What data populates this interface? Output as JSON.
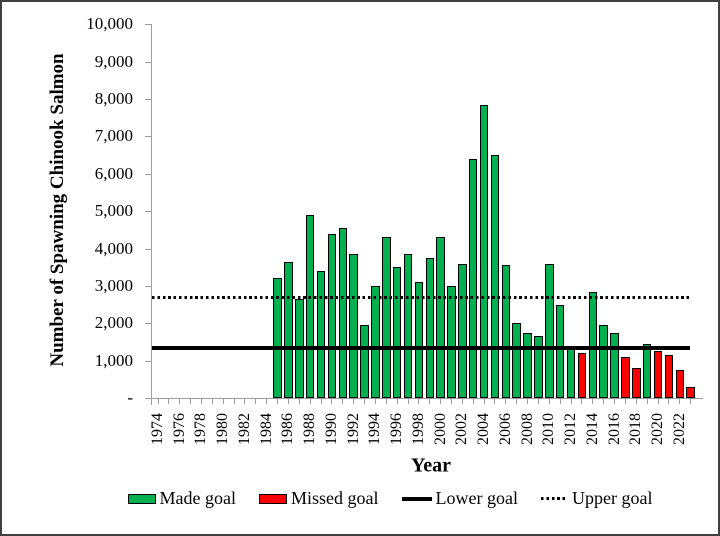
{
  "chart_data": {
    "type": "bar",
    "title": "",
    "ylabel": "Number of Spawning Chinook Salmon",
    "xlabel": "Year",
    "ylim": [
      0,
      10000
    ],
    "grid": false,
    "y_ticks": [
      {
        "value": 10000,
        "label": "10,000"
      },
      {
        "value": 9000,
        "label": "9,000"
      },
      {
        "value": 8000,
        "label": "8,000"
      },
      {
        "value": 7000,
        "label": "7,000"
      },
      {
        "value": 6000,
        "label": "6,000"
      },
      {
        "value": 5000,
        "label": "5,000"
      },
      {
        "value": 4000,
        "label": "4,000"
      },
      {
        "value": 3000,
        "label": "3,000"
      },
      {
        "value": 2000,
        "label": "2,000"
      },
      {
        "value": 1000,
        "label": "1,000"
      },
      {
        "value": 0,
        "label": "-"
      }
    ],
    "x_start_year": 1974,
    "x_end_year": 2023,
    "x_tick_labels": [
      "1974",
      "1976",
      "1978",
      "1980",
      "1982",
      "1984",
      "1986",
      "1988",
      "1990",
      "1992",
      "1994",
      "1996",
      "1998",
      "2000",
      "2002",
      "2004",
      "2006",
      "2008",
      "2010",
      "2012",
      "2014",
      "2016",
      "2018",
      "2020",
      "2022"
    ],
    "bars": [
      {
        "year": 1985,
        "value": 3200,
        "made": true
      },
      {
        "year": 1986,
        "value": 3650,
        "made": true
      },
      {
        "year": 1987,
        "value": 2650,
        "made": true
      },
      {
        "year": 1988,
        "value": 4900,
        "made": true
      },
      {
        "year": 1989,
        "value": 3400,
        "made": true
      },
      {
        "year": 1990,
        "value": 4400,
        "made": true
      },
      {
        "year": 1991,
        "value": 4550,
        "made": true
      },
      {
        "year": 1992,
        "value": 3850,
        "made": true
      },
      {
        "year": 1993,
        "value": 1950,
        "made": true
      },
      {
        "year": 1994,
        "value": 3000,
        "made": true
      },
      {
        "year": 1995,
        "value": 4300,
        "made": true
      },
      {
        "year": 1996,
        "value": 3500,
        "made": true
      },
      {
        "year": 1997,
        "value": 3850,
        "made": true
      },
      {
        "year": 1998,
        "value": 3100,
        "made": true
      },
      {
        "year": 1999,
        "value": 3750,
        "made": true
      },
      {
        "year": 2000,
        "value": 4300,
        "made": true
      },
      {
        "year": 2001,
        "value": 3000,
        "made": true
      },
      {
        "year": 2002,
        "value": 3600,
        "made": true
      },
      {
        "year": 2003,
        "value": 6400,
        "made": true
      },
      {
        "year": 2004,
        "value": 7850,
        "made": true
      },
      {
        "year": 2005,
        "value": 6500,
        "made": true
      },
      {
        "year": 2006,
        "value": 3550,
        "made": true
      },
      {
        "year": 2007,
        "value": 2000,
        "made": true
      },
      {
        "year": 2008,
        "value": 1750,
        "made": true
      },
      {
        "year": 2009,
        "value": 1650,
        "made": true
      },
      {
        "year": 2010,
        "value": 3600,
        "made": true
      },
      {
        "year": 2011,
        "value": 2500,
        "made": true
      },
      {
        "year": 2012,
        "value": 1400,
        "made": true
      },
      {
        "year": 2013,
        "value": 1200,
        "made": false
      },
      {
        "year": 2014,
        "value": 2850,
        "made": true
      },
      {
        "year": 2015,
        "value": 1950,
        "made": true
      },
      {
        "year": 2016,
        "value": 1750,
        "made": true
      },
      {
        "year": 2017,
        "value": 1100,
        "made": false
      },
      {
        "year": 2018,
        "value": 800,
        "made": false
      },
      {
        "year": 2019,
        "value": 1450,
        "made": true
      },
      {
        "year": 2020,
        "value": 1250,
        "made": false
      },
      {
        "year": 2021,
        "value": 1150,
        "made": false
      },
      {
        "year": 2022,
        "value": 750,
        "made": false
      },
      {
        "year": 2023,
        "value": 300,
        "made": false
      }
    ],
    "lower_goal": 1350,
    "upper_goal": 2700,
    "colors": {
      "made": "#00B050",
      "missed": "#FF0000",
      "axis": "#9c9c9c",
      "goal_line": "#000000",
      "frame_border": "#3f3f3f"
    },
    "legend": [
      {
        "label": "Made goal",
        "swatch": "made-box"
      },
      {
        "label": "Missed goal",
        "swatch": "missed-box"
      },
      {
        "label": "Lower goal",
        "swatch": "solid-line"
      },
      {
        "label": "Upper goal",
        "swatch": "dotted-line"
      }
    ],
    "legend_position": "bottom"
  }
}
